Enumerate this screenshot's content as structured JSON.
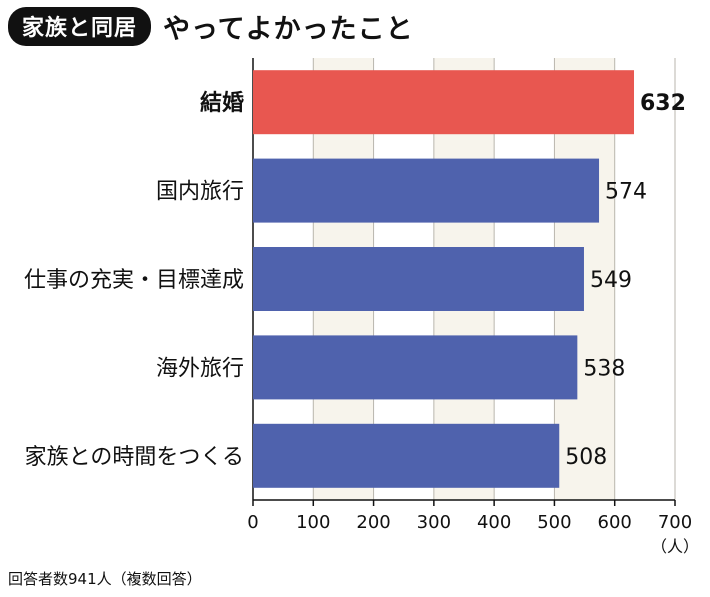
{
  "header": {
    "badge": "家族と同居",
    "title": "やってよかったこと"
  },
  "footnote": "回答者数941人（複数回答）",
  "chart_data": {
    "type": "bar",
    "orientation": "horizontal",
    "categories": [
      "結婚",
      "国内旅行",
      "仕事の充実・目標達成",
      "海外旅行",
      "家族との時間をつくる"
    ],
    "values": [
      632,
      574,
      549,
      538,
      508
    ],
    "unit_label": "（人）",
    "xlim": [
      0,
      700
    ],
    "ticks": [
      0,
      100,
      200,
      300,
      400,
      500,
      600,
      700
    ],
    "highlight_index": 0,
    "colors": {
      "highlight": "#e85750",
      "bar": "#4f62ad",
      "grid_band": "#f7f4ec",
      "grid_line": "#b9b6ad",
      "axis": "#111111"
    },
    "grid": true,
    "legend": "none"
  }
}
